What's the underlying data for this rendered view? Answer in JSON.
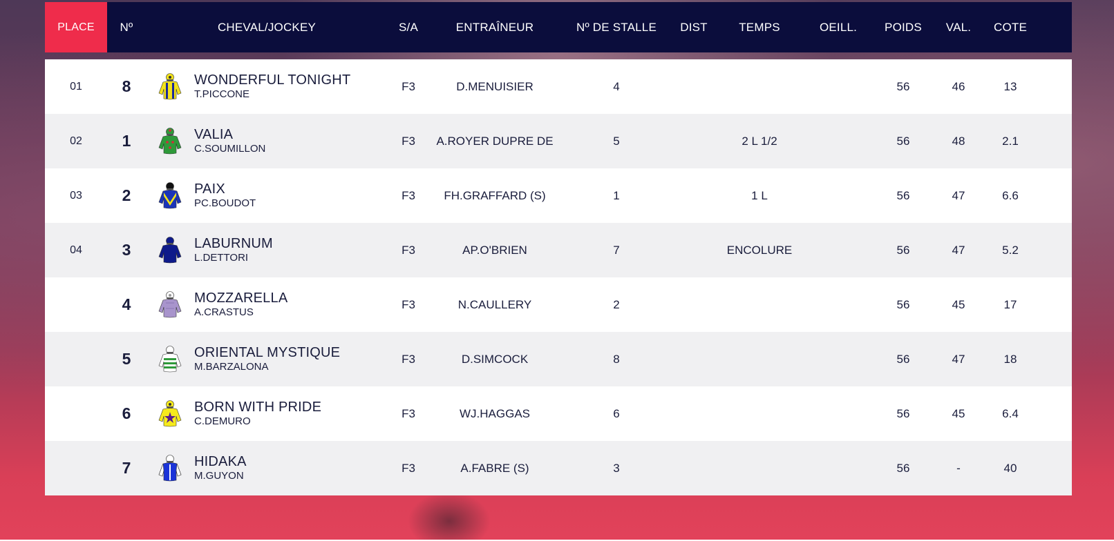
{
  "header": {
    "place": "PLACE",
    "num": "Nº",
    "horse_jockey": "CHEVAL/JOCKEY",
    "sa": "S/A",
    "trainer": "ENTRAÎNEUR",
    "stall": "Nº DE STALLE",
    "dist": "DIST",
    "temps": "TEMPS",
    "oeill": "OEILL.",
    "poids": "POIDS",
    "val": "VAL.",
    "cote": "COTE"
  },
  "rows": [
    {
      "place": "01",
      "num": "8",
      "horse": "WONDERFUL TONIGHT",
      "jockey": "T.PICCONE",
      "sa": "F3",
      "trainer": "D.MENUISIER",
      "stall": "4",
      "dist": "",
      "temps": "",
      "oeill": "",
      "poids": "56",
      "val": "46",
      "cote": "13",
      "silk": {
        "icon": "silk-yellow-blue-stripes-icon",
        "body": "#f2e21a",
        "accent": "#1a2a9c",
        "cap": "#f2e21a"
      }
    },
    {
      "place": "02",
      "num": "1",
      "horse": "VALIA",
      "jockey": "C.SOUMILLON",
      "sa": "F3",
      "trainer": "A.ROYER DUPRE DE",
      "stall": "5",
      "dist": "",
      "temps": "2 L 1/2",
      "oeill": "",
      "poids": "56",
      "val": "48",
      "cote": "2.1",
      "silk": {
        "icon": "silk-green-red-spots-icon",
        "body": "#2e9a3a",
        "accent": "#d8283a",
        "cap": "#2e9a3a"
      }
    },
    {
      "place": "03",
      "num": "2",
      "horse": "PAIX",
      "jockey": "PC.BOUDOT",
      "sa": "F3",
      "trainer": "FH.GRAFFARD (S)",
      "stall": "1",
      "dist": "",
      "temps": "1 L",
      "oeill": "",
      "poids": "56",
      "val": "47",
      "cote": "6.6",
      "silk": {
        "icon": "silk-blue-yellow-chevron-icon",
        "body": "#1b34b8",
        "accent": "#f2e21a",
        "cap": "#111111"
      }
    },
    {
      "place": "04",
      "num": "3",
      "horse": "LABURNUM",
      "jockey": "L.DETTORI",
      "sa": "F3",
      "trainer": "AP.O'BRIEN",
      "stall": "7",
      "dist": "",
      "temps": "ENCOLURE",
      "oeill": "",
      "poids": "56",
      "val": "47",
      "cote": "5.2",
      "silk": {
        "icon": "silk-dark-blue-icon",
        "body": "#0e1a8a",
        "accent": "#0e1a8a",
        "cap": "#0e1a8a"
      }
    },
    {
      "place": "",
      "num": "4",
      "horse": "MOZZARELLA",
      "jockey": "A.CRASTUS",
      "sa": "F3",
      "trainer": "N.CAULLERY",
      "stall": "2",
      "dist": "",
      "temps": "",
      "oeill": "",
      "poids": "56",
      "val": "45",
      "cote": "17",
      "silk": {
        "icon": "silk-lilac-icon",
        "body": "#a894cc",
        "accent": "#8a76b4",
        "cap": "#ffffff"
      }
    },
    {
      "place": "",
      "num": "5",
      "horse": "ORIENTAL MYSTIQUE",
      "jockey": "M.BARZALONA",
      "sa": "F3",
      "trainer": "D.SIMCOCK",
      "stall": "8",
      "dist": "",
      "temps": "",
      "oeill": "",
      "poids": "56",
      "val": "47",
      "cote": "18",
      "silk": {
        "icon": "silk-white-green-hoops-icon",
        "body": "#ffffff",
        "accent": "#2e9a3a",
        "cap": "#ffffff"
      }
    },
    {
      "place": "",
      "num": "6",
      "horse": "BORN WITH PRIDE",
      "jockey": "C.DEMURO",
      "sa": "F3",
      "trainer": "WJ.HAGGAS",
      "stall": "6",
      "dist": "",
      "temps": "",
      "oeill": "",
      "poids": "56",
      "val": "45",
      "cote": "6.4",
      "silk": {
        "icon": "silk-yellow-purple-star-icon",
        "body": "#f6ea1c",
        "accent": "#5a1e8a",
        "cap": "#f6ea1c"
      }
    },
    {
      "place": "",
      "num": "7",
      "horse": "HIDAKA",
      "jockey": "M.GUYON",
      "sa": "F3",
      "trainer": "A.FABRE (S)",
      "stall": "3",
      "dist": "",
      "temps": "",
      "oeill": "",
      "poids": "56",
      "val": "-",
      "cote": "40",
      "silk": {
        "icon": "silk-blue-white-sleeves-icon",
        "body": "#1b34d8",
        "accent": "#ffffff",
        "cap": "#ffffff"
      }
    }
  ],
  "colors": {
    "header_bg": "#0b0d3c",
    "place_accent": "#ef2c4b",
    "row_alt": "#f0f0f2",
    "text_dark": "#1a1d3c"
  }
}
